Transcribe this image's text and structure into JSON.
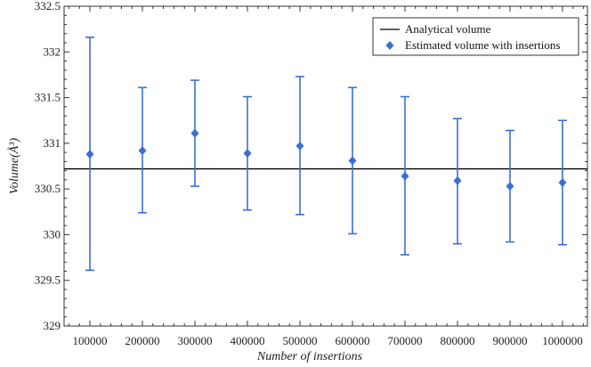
{
  "chart_data": {
    "type": "scatter",
    "title": "",
    "xlabel": "Number of insertions",
    "ylabel": "Volume(Å³)",
    "ylim": [
      329,
      332.5
    ],
    "yticks": [
      "329",
      "329.5",
      "330",
      "330.5",
      "331",
      "331.5",
      "332",
      "332.5"
    ],
    "categories": [
      "100000",
      "200000",
      "300000",
      "400000",
      "500000",
      "600000",
      "700000",
      "800000",
      "900000",
      "1000000"
    ],
    "analytical_volume": 330.72,
    "series": [
      {
        "name": "Estimated volume with insertions",
        "values": [
          330.88,
          330.92,
          331.11,
          330.89,
          330.97,
          330.81,
          330.64,
          330.59,
          330.53,
          330.57
        ],
        "error_low": [
          329.61,
          330.24,
          330.53,
          330.27,
          330.22,
          330.01,
          329.78,
          329.9,
          329.92,
          329.89
        ],
        "error_high": [
          332.16,
          331.61,
          331.69,
          331.51,
          331.73,
          331.61,
          331.51,
          331.27,
          331.14,
          331.25
        ]
      }
    ],
    "legend": {
      "position": "top-right",
      "entries": [
        "Analytical volume",
        "Estimated volume with insertions"
      ]
    },
    "colors": {
      "series": "#3a6fd8",
      "line": "#000000"
    },
    "grid": false
  }
}
